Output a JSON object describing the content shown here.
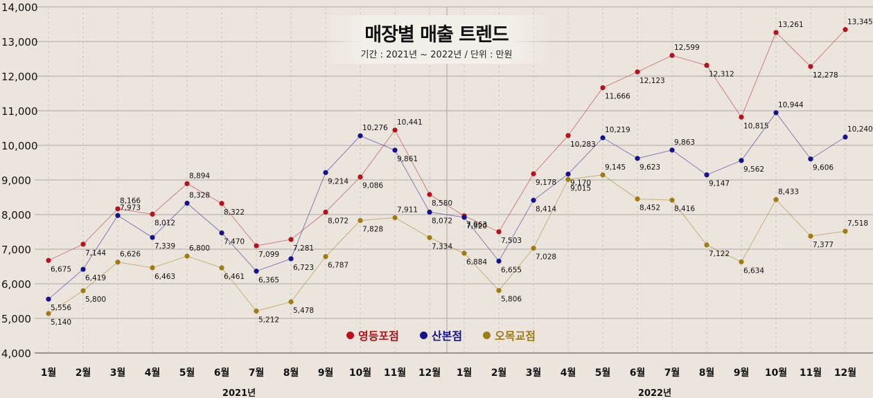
{
  "chart_data": {
    "type": "line",
    "title": "매장별 매출 트렌드",
    "subtitle": "기간 : 2021년 ~ 2022년 / 단위 : 만원",
    "categories": [
      "1월",
      "2월",
      "3월",
      "4월",
      "5월",
      "6월",
      "7월",
      "8월",
      "9월",
      "10월",
      "11월",
      "12월",
      "1월",
      "2월",
      "3월",
      "4월",
      "5월",
      "6월",
      "7월",
      "8월",
      "9월",
      "10월",
      "11월",
      "12월"
    ],
    "groups": [
      {
        "label": "2021년",
        "from": 0,
        "to": 11
      },
      {
        "label": "2022년",
        "from": 12,
        "to": 23
      }
    ],
    "ylim": [
      4000,
      14000
    ],
    "yticks": [
      "4,000",
      "5,000",
      "6,000",
      "7,000",
      "8,000",
      "9,000",
      "10,000",
      "11,000",
      "12,000",
      "13,000",
      "14,000"
    ],
    "grid": true,
    "legend_position": "bottom-center",
    "series": [
      {
        "name": "영등포점",
        "color": "#b5121b",
        "values": [
          6675,
          7144,
          8166,
          8012,
          8894,
          8322,
          7099,
          7281,
          8072,
          9086,
          10441,
          8580,
          7963,
          7503,
          9178,
          10283,
          11666,
          12123,
          12599,
          12312,
          10815,
          13261,
          12278,
          13345
        ],
        "labels": [
          "6,675",
          "7,144",
          "8,166",
          "8,012",
          "8,894",
          "8,322",
          "7,099",
          "7,281",
          "8,072",
          "9,086",
          "10,441",
          "8,580",
          "7,963",
          "7,503",
          "9,178",
          "10,283",
          "11,666",
          "12,123",
          "12,599",
          "12,312",
          "10,815",
          "13,261",
          "12,278",
          "13,345"
        ]
      },
      {
        "name": "산본점",
        "color": "#16128c",
        "values": [
          5556,
          6419,
          7973,
          7339,
          8328,
          7470,
          6365,
          6723,
          9214,
          10276,
          9861,
          8072,
          7920,
          6655,
          8414,
          9170,
          10219,
          9623,
          9863,
          9147,
          9562,
          10944,
          9606,
          10240
        ],
        "labels": [
          "5,556",
          "6,419",
          "7,973",
          "7,339",
          "8,328",
          "7,470",
          "6,365",
          "6,723",
          "9,214",
          "10,276",
          "9,861",
          "8,072",
          "7,920",
          "6,655",
          "8,414",
          "9,170",
          "10,219",
          "9,623",
          "9,863",
          "9,147",
          "9,562",
          "10,944",
          "9,606",
          "10,240"
        ]
      },
      {
        "name": "오목교점",
        "color": "#a07a12",
        "values": [
          5140,
          5800,
          6626,
          6463,
          6800,
          6461,
          5212,
          5478,
          6787,
          7828,
          7911,
          7334,
          6884,
          5806,
          7028,
          9015,
          9145,
          8452,
          8416,
          7122,
          6634,
          8433,
          7377,
          7518
        ],
        "labels": [
          "5,140",
          "5,800",
          "6,626",
          "6,463",
          "6,800",
          "6,461",
          "5,212",
          "5,478",
          "6,787",
          "7,828",
          "7,911",
          "7,334",
          "6,884",
          "5,806",
          "7,028",
          "9,015",
          "9,145",
          "8,452",
          "8,416",
          "7,122",
          "6,634",
          "8,433",
          "7,377",
          "7,518"
        ]
      }
    ]
  }
}
